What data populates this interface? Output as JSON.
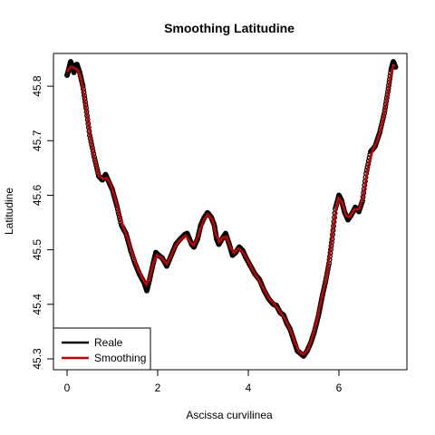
{
  "chart_data": {
    "type": "line",
    "title": "Smoothing Latitudine",
    "xlabel": "Ascissa curvilinea",
    "ylabel": "Latitudine",
    "xlim": [
      -0.3,
      7.5
    ],
    "ylim": [
      45.28,
      45.86
    ],
    "xticks": [
      0,
      2,
      4,
      6
    ],
    "yticks": [
      45.3,
      45.4,
      45.5,
      45.6,
      45.7,
      45.8
    ],
    "grid": false,
    "legend_position": "bottom-left",
    "legend": [
      {
        "label": "Reale",
        "color": "#000000"
      },
      {
        "label": "Smoothing",
        "color": "#cc0000"
      }
    ],
    "series": [
      {
        "name": "Reale",
        "color": "#000000",
        "style": "points",
        "points": [
          [
            0.0,
            45.82
          ],
          [
            0.05,
            45.835
          ],
          [
            0.08,
            45.845
          ],
          [
            0.12,
            45.835
          ],
          [
            0.15,
            45.825
          ],
          [
            0.18,
            45.838
          ],
          [
            0.22,
            45.84
          ],
          [
            0.28,
            45.825
          ],
          [
            0.35,
            45.8
          ],
          [
            0.42,
            45.76
          ],
          [
            0.5,
            45.71
          ],
          [
            0.6,
            45.67
          ],
          [
            0.7,
            45.635
          ],
          [
            0.78,
            45.628
          ],
          [
            0.85,
            45.638
          ],
          [
            0.92,
            45.625
          ],
          [
            1.0,
            45.61
          ],
          [
            1.1,
            45.58
          ],
          [
            1.2,
            45.545
          ],
          [
            1.3,
            45.53
          ],
          [
            1.4,
            45.5
          ],
          [
            1.5,
            45.475
          ],
          [
            1.6,
            45.455
          ],
          [
            1.7,
            45.44
          ],
          [
            1.76,
            45.425
          ],
          [
            1.82,
            45.445
          ],
          [
            1.9,
            45.475
          ],
          [
            1.96,
            45.495
          ],
          [
            2.02,
            45.49
          ],
          [
            2.1,
            45.485
          ],
          [
            2.2,
            45.47
          ],
          [
            2.3,
            45.49
          ],
          [
            2.4,
            45.51
          ],
          [
            2.5,
            45.52
          ],
          [
            2.6,
            45.528
          ],
          [
            2.65,
            45.53
          ],
          [
            2.7,
            45.52
          ],
          [
            2.75,
            45.51
          ],
          [
            2.8,
            45.505
          ],
          [
            2.88,
            45.52
          ],
          [
            2.95,
            45.545
          ],
          [
            3.02,
            45.558
          ],
          [
            3.1,
            45.568
          ],
          [
            3.18,
            45.56
          ],
          [
            3.25,
            45.545
          ],
          [
            3.3,
            45.52
          ],
          [
            3.35,
            45.51
          ],
          [
            3.42,
            45.52
          ],
          [
            3.5,
            45.53
          ],
          [
            3.58,
            45.51
          ],
          [
            3.65,
            45.49
          ],
          [
            3.72,
            45.495
          ],
          [
            3.8,
            45.505
          ],
          [
            3.88,
            45.498
          ],
          [
            3.95,
            45.485
          ],
          [
            4.05,
            45.47
          ],
          [
            4.15,
            45.455
          ],
          [
            4.25,
            45.445
          ],
          [
            4.35,
            45.425
          ],
          [
            4.45,
            45.41
          ],
          [
            4.55,
            45.4
          ],
          [
            4.62,
            45.398
          ],
          [
            4.7,
            45.385
          ],
          [
            4.78,
            45.38
          ],
          [
            4.85,
            45.365
          ],
          [
            4.92,
            45.355
          ],
          [
            5.0,
            45.335
          ],
          [
            5.08,
            45.315
          ],
          [
            5.15,
            45.31
          ],
          [
            5.22,
            45.305
          ],
          [
            5.3,
            45.315
          ],
          [
            5.38,
            45.33
          ],
          [
            5.46,
            45.35
          ],
          [
            5.55,
            45.38
          ],
          [
            5.62,
            45.41
          ],
          [
            5.7,
            45.44
          ],
          [
            5.78,
            45.475
          ],
          [
            5.85,
            45.52
          ],
          [
            5.92,
            45.575
          ],
          [
            6.0,
            45.6
          ],
          [
            6.06,
            45.59
          ],
          [
            6.12,
            45.57
          ],
          [
            6.2,
            45.555
          ],
          [
            6.28,
            45.565
          ],
          [
            6.36,
            45.578
          ],
          [
            6.44,
            45.57
          ],
          [
            6.52,
            45.59
          ],
          [
            6.6,
            45.64
          ],
          [
            6.7,
            45.68
          ],
          [
            6.8,
            45.69
          ],
          [
            6.9,
            45.715
          ],
          [
            7.0,
            45.75
          ],
          [
            7.08,
            45.79
          ],
          [
            7.15,
            45.83
          ],
          [
            7.2,
            45.845
          ],
          [
            7.25,
            45.835
          ]
        ]
      },
      {
        "name": "Smoothing",
        "color": "#cc0000",
        "style": "line",
        "points": [
          [
            0.0,
            45.826
          ],
          [
            0.05,
            45.832
          ],
          [
            0.1,
            45.836
          ],
          [
            0.15,
            45.833
          ],
          [
            0.2,
            45.832
          ],
          [
            0.26,
            45.826
          ],
          [
            0.32,
            45.808
          ],
          [
            0.4,
            45.77
          ],
          [
            0.5,
            45.712
          ],
          [
            0.6,
            45.668
          ],
          [
            0.7,
            45.636
          ],
          [
            0.8,
            45.63
          ],
          [
            0.88,
            45.632
          ],
          [
            0.95,
            45.622
          ],
          [
            1.05,
            45.598
          ],
          [
            1.15,
            45.565
          ],
          [
            1.25,
            45.54
          ],
          [
            1.35,
            45.518
          ],
          [
            1.45,
            45.492
          ],
          [
            1.55,
            45.468
          ],
          [
            1.65,
            45.45
          ],
          [
            1.75,
            45.436
          ],
          [
            1.82,
            45.448
          ],
          [
            1.9,
            45.474
          ],
          [
            1.98,
            45.49
          ],
          [
            2.08,
            45.486
          ],
          [
            2.2,
            45.474
          ],
          [
            2.3,
            45.49
          ],
          [
            2.4,
            45.508
          ],
          [
            2.5,
            45.518
          ],
          [
            2.62,
            45.526
          ],
          [
            2.72,
            45.514
          ],
          [
            2.8,
            45.508
          ],
          [
            2.9,
            45.526
          ],
          [
            3.0,
            45.552
          ],
          [
            3.1,
            45.565
          ],
          [
            3.2,
            45.556
          ],
          [
            3.28,
            45.53
          ],
          [
            3.36,
            45.514
          ],
          [
            3.44,
            45.522
          ],
          [
            3.52,
            45.524
          ],
          [
            3.6,
            45.506
          ],
          [
            3.68,
            45.494
          ],
          [
            3.78,
            45.502
          ],
          [
            3.88,
            45.496
          ],
          [
            3.98,
            45.482
          ],
          [
            4.1,
            45.462
          ],
          [
            4.22,
            45.447
          ],
          [
            4.34,
            45.428
          ],
          [
            4.46,
            45.41
          ],
          [
            4.58,
            45.4
          ],
          [
            4.7,
            45.386
          ],
          [
            4.82,
            45.372
          ],
          [
            4.92,
            45.354
          ],
          [
            5.02,
            45.332
          ],
          [
            5.12,
            45.313
          ],
          [
            5.22,
            45.308
          ],
          [
            5.32,
            45.318
          ],
          [
            5.42,
            45.342
          ],
          [
            5.52,
            45.374
          ],
          [
            5.62,
            45.412
          ],
          [
            5.72,
            45.448
          ],
          [
            5.82,
            45.505
          ],
          [
            5.92,
            45.568
          ],
          [
            6.0,
            45.595
          ],
          [
            6.08,
            45.585
          ],
          [
            6.16,
            45.562
          ],
          [
            6.24,
            45.56
          ],
          [
            6.34,
            45.574
          ],
          [
            6.44,
            45.574
          ],
          [
            6.54,
            45.6
          ],
          [
            6.64,
            45.652
          ],
          [
            6.74,
            45.682
          ],
          [
            6.84,
            45.698
          ],
          [
            6.94,
            45.726
          ],
          [
            7.04,
            45.768
          ],
          [
            7.12,
            45.81
          ],
          [
            7.2,
            45.838
          ],
          [
            7.25,
            45.838
          ]
        ]
      }
    ]
  }
}
